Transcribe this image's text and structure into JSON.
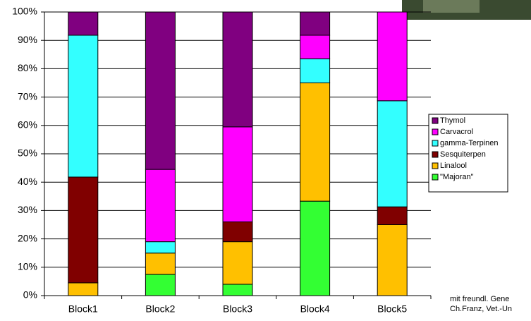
{
  "chart_data": {
    "type": "stacked_bar_percent",
    "categories": [
      "Block1",
      "Block2",
      "Block3",
      "Block4",
      "Block5"
    ],
    "series": [
      {
        "name": "\"Majoran\"",
        "color": "#33ff33",
        "values": [
          0,
          7.5,
          4,
          33.3,
          0
        ]
      },
      {
        "name": "Linalool",
        "color": "#ffc000",
        "values": [
          4.5,
          7.5,
          15,
          41.7,
          25
        ]
      },
      {
        "name": "Sesquiterpen",
        "color": "#800000",
        "values": [
          37.3,
          0,
          7,
          0,
          6.3
        ]
      },
      {
        "name": "gamma-Terpinen",
        "color": "#33ffff",
        "values": [
          50,
          4,
          0,
          8.5,
          37.4
        ]
      },
      {
        "name": "Carvacrol",
        "color": "#ff00ff",
        "values": [
          0,
          25.5,
          33.5,
          8.3,
          31.3
        ]
      },
      {
        "name": "Thymol",
        "color": "#800080",
        "values": [
          8.2,
          55.5,
          40.5,
          8.2,
          0
        ]
      }
    ],
    "ylim": [
      0,
      100
    ],
    "yticks": [
      {
        "value": 0,
        "label": "0%"
      },
      {
        "value": 10,
        "label": "10%"
      },
      {
        "value": 20,
        "label": "20%"
      },
      {
        "value": 30,
        "label": "30%"
      },
      {
        "value": 40,
        "label": "40%"
      },
      {
        "value": 50,
        "label": "50%"
      },
      {
        "value": 60,
        "label": "60%"
      },
      {
        "value": 70,
        "label": "70%"
      },
      {
        "value": 80,
        "label": "80%"
      },
      {
        "value": 90,
        "label": "90%"
      },
      {
        "value": 100,
        "label": "100%"
      }
    ],
    "grid": true,
    "legend": "right",
    "annotations": [
      "mit freundl. Gene",
      "Ch.Franz, Vet.-Un"
    ]
  }
}
